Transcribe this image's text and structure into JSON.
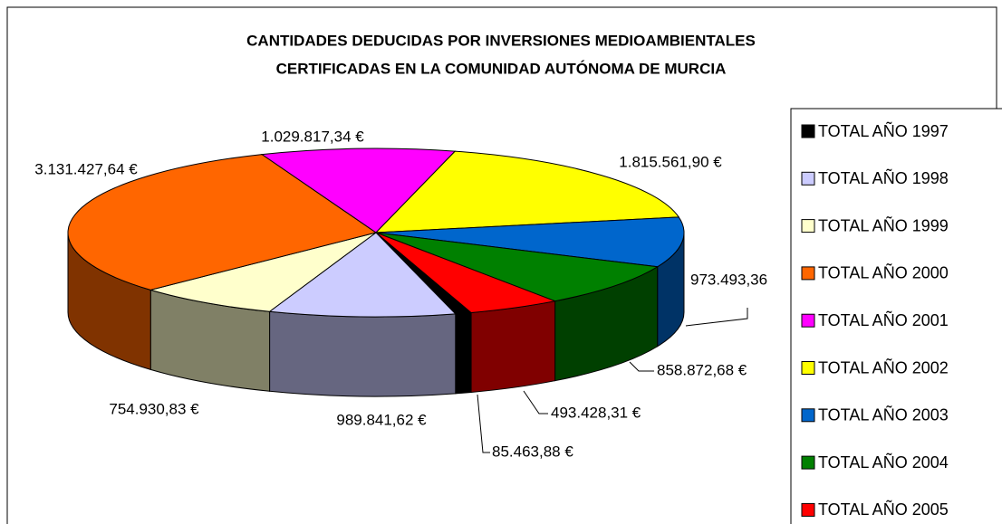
{
  "chart_data": {
    "type": "pie3d",
    "title": [
      "CANTIDADES DEDUCIDAS POR INVERSIONES MEDIOAMBIENTALES",
      "CERTIFICADAS EN LA COMUNIDAD AUTÓNOMA DE MURCIA"
    ],
    "categories": [
      "TOTAL AÑO 1997",
      "TOTAL AÑO 1998",
      "TOTAL AÑO 1999",
      "TOTAL AÑO 2000",
      "TOTAL AÑO 2001",
      "TOTAL AÑO 2002",
      "TOTAL AÑO 2003",
      "TOTAL AÑO 2004",
      "TOTAL AÑO 2005"
    ],
    "values": [
      85463.88,
      989841.62,
      754930.83,
      3131427.64,
      1029817.34,
      1815561.9,
      973493.36,
      858872.68,
      493428.31
    ],
    "value_labels": [
      "85.463,88 €",
      "989.841,62 €",
      "754.930,83 €",
      "3.131.427,64 €",
      "1.029.817,34 €",
      "1.815.561,90 €",
      "973.493,36",
      "858.872,68 €",
      "493.428,31 €"
    ],
    "colors": [
      "#000000",
      "#ccccff",
      "#ffffcc",
      "#ff6600",
      "#ff00ff",
      "#ffff00",
      "#0066cc",
      "#008000",
      "#ff0000"
    ],
    "legend": "right"
  }
}
